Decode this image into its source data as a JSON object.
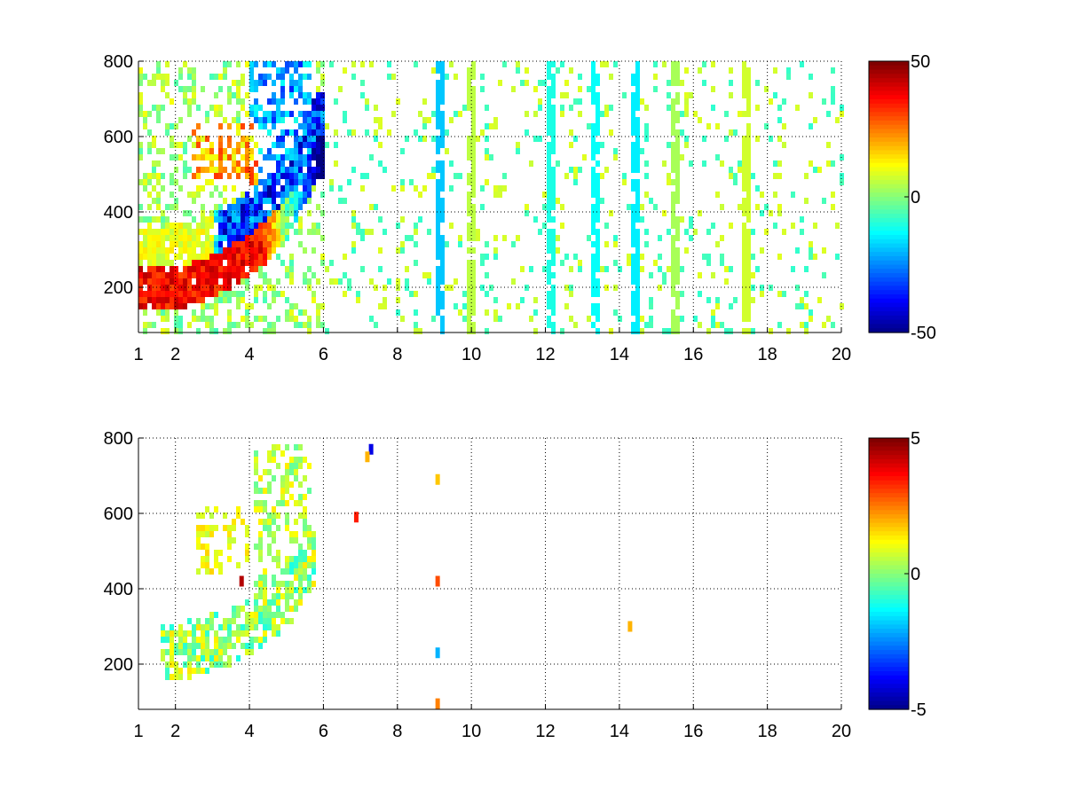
{
  "chart_data": [
    {
      "type": "heatmap",
      "title": "",
      "xlabel": "",
      "ylabel": "",
      "xlim": [
        1,
        20
      ],
      "ylim": [
        80,
        800
      ],
      "xticks": [
        "1",
        "2",
        "4",
        "6",
        "8",
        "10",
        "12",
        "14",
        "16",
        "18",
        "20"
      ],
      "yticks": [
        "200",
        "400",
        "600",
        "800"
      ],
      "grid": true,
      "colormap": "jet",
      "colorbar": {
        "limits": [
          -50,
          50
        ],
        "ticks": [
          "50",
          "0",
          "-50"
        ]
      },
      "features": {
        "band_path_x": [
          1.9,
          2.5,
          3.0,
          3.5,
          4.0,
          4.5,
          5.0,
          5.4,
          5.8
        ],
        "band_path_y": [
          210,
          225,
          245,
          270,
          300,
          340,
          395,
          460,
          560
        ],
        "positive_peak_x": 3.6,
        "positive_peak_y": 265,
        "positive_peak_value": 45,
        "negative_peak_x": 5.2,
        "negative_peak_y": 360,
        "negative_peak_value": -48,
        "vertical_stripes_x": [
          9.1,
          10.0,
          12.2,
          13.3,
          14.4,
          15.5,
          17.4
        ],
        "vertical_stripe_values": [
          -18,
          6,
          -10,
          -12,
          -14,
          4,
          8
        ]
      }
    },
    {
      "type": "heatmap",
      "title": "",
      "xlabel": "",
      "ylabel": "",
      "xlim": [
        1,
        20
      ],
      "ylim": [
        80,
        800
      ],
      "xticks": [
        "1",
        "2",
        "4",
        "6",
        "8",
        "10",
        "12",
        "14",
        "16",
        "18",
        "20"
      ],
      "yticks": [
        "200",
        "400",
        "600",
        "800"
      ],
      "grid": true,
      "colormap": "jet",
      "colorbar": {
        "limits": [
          -5,
          5
        ],
        "ticks": [
          "5",
          "0",
          "-5"
        ]
      },
      "features": {
        "band_path_x": [
          1.7,
          2.2,
          2.8,
          3.4,
          4.0,
          4.6,
          5.2,
          5.7
        ],
        "band_path_y": [
          210,
          220,
          235,
          255,
          280,
          320,
          380,
          460
        ],
        "band_value_range": [
          -1.0,
          1.5
        ],
        "upper_cluster_x": [
          2.6,
          4.0
        ],
        "upper_cluster_y": [
          430,
          620
        ],
        "isolated_points": [
          {
            "x": 7.3,
            "y": 770,
            "value": -4.0
          },
          {
            "x": 7.2,
            "y": 750,
            "value": 2.0
          },
          {
            "x": 6.9,
            "y": 590,
            "value": 3.5
          },
          {
            "x": 3.8,
            "y": 420,
            "value": 4.5
          },
          {
            "x": 9.1,
            "y": 690,
            "value": 1.8
          },
          {
            "x": 9.1,
            "y": 420,
            "value": 3.0
          },
          {
            "x": 9.1,
            "y": 230,
            "value": -2.0
          },
          {
            "x": 9.1,
            "y": 95,
            "value": 2.5
          },
          {
            "x": 14.3,
            "y": 300,
            "value": 2.0
          }
        ]
      }
    }
  ]
}
